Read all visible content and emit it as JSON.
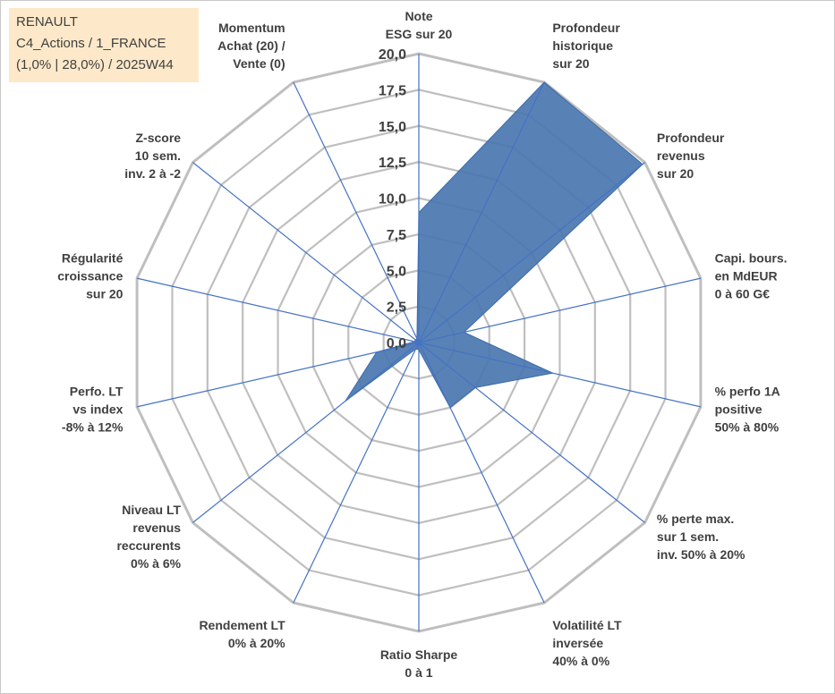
{
  "info_box": {
    "line1": "RENAULT",
    "line2": "C4_Actions / 1_FRANCE",
    "line3": "(1,0% | 28,0%) / 2025W44"
  },
  "colors": {
    "grid": "#bfbfbf",
    "spoke": "#4472c4",
    "area_fill": "#4a77b0",
    "area_stroke": "#3d6ba8",
    "text": "#404040",
    "info_bg": "#fde9c9"
  },
  "chart_data": {
    "type": "radar",
    "title": "",
    "r_range": [
      0,
      20
    ],
    "r_ticks": [
      "0,0",
      "2,5",
      "5,0",
      "7,5",
      "10,0",
      "12,5",
      "15,0",
      "17,5",
      "20,0"
    ],
    "grid_levels": 8,
    "categories": [
      [
        "Note",
        "ESG sur 20"
      ],
      [
        "Profondeur",
        "historique",
        "sur 20"
      ],
      [
        "Profondeur",
        "revenus",
        "sur 20"
      ],
      [
        "Capi. bours.",
        "en MdEUR",
        "0 à 60 G€"
      ],
      [
        "% perfo 1A",
        "positive",
        "50% à 80%"
      ],
      [
        "% perte max.",
        "sur 1 sem.",
        "inv. 50% à 20%"
      ],
      [
        "Volatilité LT",
        "inversée",
        "40% à 0%"
      ],
      [
        "Ratio Sharpe",
        "0 à 1"
      ],
      [
        "Rendement LT",
        "0% à 20%"
      ],
      [
        "Niveau LT",
        "revenus",
        "reccurents",
        "0% à 6%"
      ],
      [
        "Perfo. LT",
        "vs index",
        "-8% à 12%"
      ],
      [
        "Régularité",
        "croissance",
        "sur 20"
      ],
      [
        "Z-score",
        "10 sem.",
        "inv. 2 à -2"
      ],
      [
        "Momentum",
        "Achat (20) /",
        "Vente (0)"
      ]
    ],
    "series": [
      {
        "name": "RENAULT",
        "values": [
          9.0,
          20.0,
          19.8,
          3.2,
          9.5,
          5.0,
          5.0,
          0.5,
          0.5,
          6.5,
          3.0,
          0.3,
          0.3,
          0.3
        ]
      }
    ]
  }
}
